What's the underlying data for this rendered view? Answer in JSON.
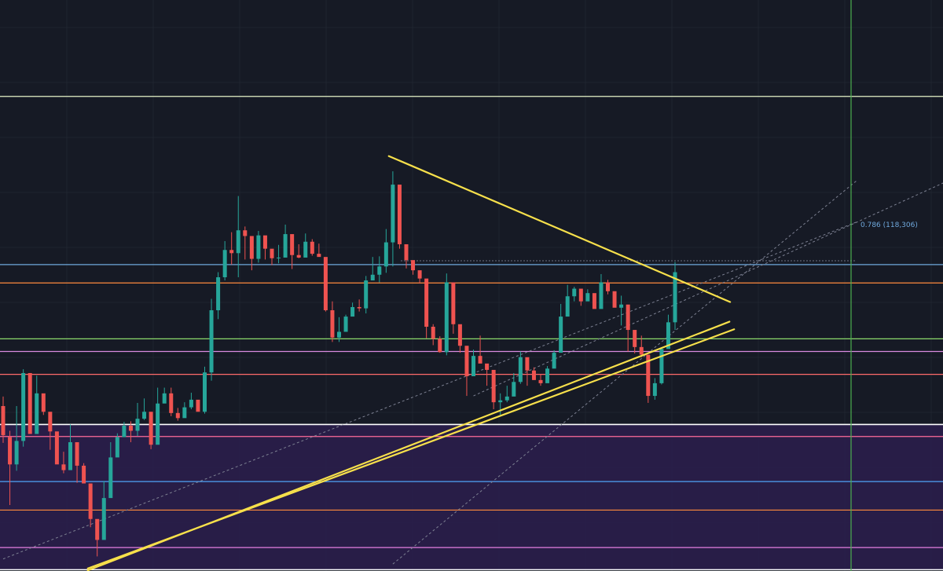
{
  "chart_data": {
    "type": "candlestick",
    "title": "",
    "xlabel": "",
    "ylabel": "",
    "y_range": [
      70,
      160
    ],
    "price_label": "0.786 (118,306)",
    "colors": {
      "background": "#161a25",
      "grid": "#1f2430",
      "up": "#26a69a",
      "down": "#ef5350",
      "trendline": "#f7e04b",
      "zone_fill": "#2b1f4d",
      "dashed": "#7d8192",
      "vertical_marker": "#4caf50",
      "label": "#6fa8dc"
    },
    "horizontal_levels": [
      {
        "price": 144.8,
        "color": "#e6f3c8"
      },
      {
        "price": 118.3,
        "color": "#6fa8dc"
      },
      {
        "price": 118.9,
        "color": "#5d6272",
        "dashed": true
      },
      {
        "price": 115.4,
        "color": "#ff8a3d"
      },
      {
        "price": 106.6,
        "color": "#8bd96b"
      },
      {
        "price": 104.6,
        "color": "#d98be0"
      },
      {
        "price": 101.0,
        "color": "#ff6b6b"
      },
      {
        "price": 93.1,
        "color": "#ffffff"
      },
      {
        "price": 91.2,
        "color": "#ff6b9a"
      },
      {
        "price": 84.1,
        "color": "#4fa3f7"
      },
      {
        "price": 79.6,
        "color": "#ff8a3d"
      },
      {
        "price": 73.7,
        "color": "#e47fe0"
      },
      {
        "price": 70.2,
        "color": "#ffffff"
      }
    ],
    "candles": [
      [
        96.0,
        91.4,
        97.5,
        90.2
      ],
      [
        91.1,
        86.8,
        92.1,
        80.4
      ],
      [
        86.8,
        90.5,
        96.0,
        85.8
      ],
      [
        90.5,
        101.2,
        101.8,
        89.6
      ],
      [
        101.2,
        91.6,
        99.0,
        92.4
      ],
      [
        91.6,
        98.0,
        100.8,
        97.6
      ],
      [
        98.0,
        95.1,
        96.9,
        94.6
      ],
      [
        95.1,
        92.0,
        93.0,
        89.1
      ],
      [
        92.0,
        86.8,
        90.2,
        87.4
      ],
      [
        86.8,
        85.9,
        88.8,
        85.4
      ],
      [
        85.9,
        90.3,
        93.1,
        86.9
      ],
      [
        90.3,
        86.6,
        88.1,
        83.9
      ],
      [
        86.6,
        83.8,
        87.0,
        83.8
      ],
      [
        83.8,
        78.2,
        80.7,
        76.9
      ],
      [
        78.2,
        74.9,
        77.1,
        72.3
      ],
      [
        74.9,
        81.5,
        84.2,
        76.6
      ],
      [
        81.5,
        87.9,
        90.3,
        82.5
      ],
      [
        87.9,
        91.1,
        91.7,
        88.9
      ],
      [
        91.1,
        92.9,
        93.5,
        92.0
      ],
      [
        92.9,
        92.1,
        93.6,
        90.3
      ],
      [
        92.1,
        94.0,
        96.5,
        91.3
      ],
      [
        94.0,
        95.1,
        97.2,
        93.8
      ],
      [
        95.1,
        89.9,
        93.3,
        89.2
      ],
      [
        89.9,
        96.4,
        98.9,
        96.3
      ],
      [
        96.4,
        98.0,
        98.9,
        96.6
      ],
      [
        98.0,
        94.9,
        98.9,
        94.4
      ],
      [
        94.9,
        94.1,
        95.7,
        93.7
      ],
      [
        94.1,
        95.8,
        96.6,
        95.2
      ],
      [
        95.8,
        97.0,
        98.1,
        95.5
      ],
      [
        97.0,
        95.1,
        96.2,
        95.3
      ],
      [
        95.1,
        101.3,
        102.2,
        94.8
      ],
      [
        101.3,
        111.1,
        112.9,
        100.0
      ],
      [
        111.1,
        116.3,
        117.1,
        109.7
      ],
      [
        116.3,
        120.6,
        122.0,
        115.8
      ],
      [
        120.6,
        120.1,
        123.4,
        118.3
      ],
      [
        120.1,
        123.7,
        129.1,
        116.3
      ],
      [
        123.7,
        122.8,
        124.3,
        119.1
      ],
      [
        122.8,
        119.2,
        121.7,
        117.4
      ],
      [
        119.2,
        122.9,
        123.6,
        118.6
      ],
      [
        122.9,
        120.8,
        122.1,
        119.1
      ],
      [
        120.8,
        119.3,
        119.7,
        118.2
      ],
      [
        119.3,
        119.4,
        121.4,
        118.5
      ],
      [
        119.4,
        123.1,
        124.6,
        122.9
      ],
      [
        123.1,
        119.8,
        122.1,
        117.6
      ],
      [
        119.8,
        119.4,
        121.5,
        119.3
      ],
      [
        119.4,
        121.9,
        123.2,
        120.6
      ],
      [
        121.9,
        120.0,
        122.3,
        119.7
      ],
      [
        120.0,
        119.5,
        121.6,
        119.7
      ],
      [
        119.5,
        111.1,
        114.5,
        110.9
      ],
      [
        111.1,
        106.8,
        112.5,
        106.1
      ],
      [
        106.8,
        107.7,
        110.0,
        106.1
      ],
      [
        107.7,
        110.1,
        110.4,
        108.6
      ],
      [
        110.1,
        111.6,
        112.3,
        110.3
      ],
      [
        111.6,
        111.4,
        112.8,
        110.9
      ],
      [
        111.4,
        115.8,
        116.5,
        110.6
      ],
      [
        115.8,
        116.7,
        119.5,
        115.8
      ],
      [
        116.7,
        118.0,
        119.6,
        115.5
      ],
      [
        118.0,
        121.8,
        123.9,
        117.0
      ],
      [
        121.8,
        130.9,
        133.0,
        118.0
      ],
      [
        130.9,
        121.5,
        122.2,
        120.8
      ],
      [
        121.5,
        119.0,
        120.1,
        117.7
      ],
      [
        119.0,
        117.4,
        118.7,
        116.7
      ],
      [
        117.4,
        116.1,
        116.8,
        115.3
      ],
      [
        116.1,
        108.5,
        112.0,
        106.7
      ],
      [
        108.5,
        106.6,
        108.9,
        105.6
      ],
      [
        106.6,
        104.5,
        107.0,
        104.4
      ],
      [
        104.5,
        115.5,
        116.9,
        104.0
      ],
      [
        115.5,
        108.9,
        114.5,
        107.4
      ],
      [
        108.9,
        105.5,
        108.2,
        104.4
      ],
      [
        105.5,
        100.7,
        102.2,
        97.6
      ],
      [
        100.7,
        103.9,
        104.9,
        102.6
      ],
      [
        103.9,
        102.7,
        107.1,
        103.1
      ],
      [
        102.7,
        101.7,
        102.1,
        99.2
      ],
      [
        101.7,
        96.6,
        100.7,
        95.5
      ],
      [
        96.6,
        96.9,
        98.0,
        94.6
      ],
      [
        96.9,
        97.5,
        99.2,
        96.6
      ],
      [
        97.5,
        99.8,
        101.2,
        98.5
      ],
      [
        99.8,
        103.7,
        104.6,
        99.5
      ],
      [
        103.7,
        101.6,
        101.7,
        99.2
      ],
      [
        101.6,
        100.1,
        102.1,
        100.1
      ],
      [
        100.1,
        99.6,
        101.0,
        99.2
      ],
      [
        99.6,
        101.9,
        102.3,
        100.3
      ],
      [
        101.9,
        104.4,
        104.8,
        102.4
      ],
      [
        104.4,
        110.1,
        112.1,
        107.3
      ],
      [
        110.1,
        113.3,
        115.1,
        111.6
      ],
      [
        113.3,
        114.5,
        114.8,
        112.5
      ],
      [
        114.5,
        112.5,
        113.4,
        111.8
      ],
      [
        112.5,
        113.8,
        114.4,
        112.9
      ],
      [
        113.8,
        111.3,
        113.4,
        112.9
      ],
      [
        111.3,
        115.5,
        116.8,
        114.2
      ],
      [
        115.5,
        114.1,
        115.9,
        113.6
      ],
      [
        114.1,
        111.5,
        113.4,
        111.9
      ],
      [
        111.5,
        112.0,
        113.4,
        108.7
      ],
      [
        112.0,
        108.0,
        110.5,
        104.6
      ],
      [
        108.0,
        105.3,
        107.7,
        104.3
      ],
      [
        105.3,
        104.1,
        107.1,
        103.7
      ],
      [
        104.1,
        97.6,
        99.2,
        96.5
      ],
      [
        97.6,
        99.6,
        100.4,
        97.0
      ],
      [
        99.6,
        105.0,
        105.1,
        99.4
      ],
      [
        105.0,
        109.2,
        110.4,
        106.9
      ],
      [
        109.2,
        117.1,
        118.7,
        108.0
      ]
    ],
    "vertical_marker_index": 145
  }
}
